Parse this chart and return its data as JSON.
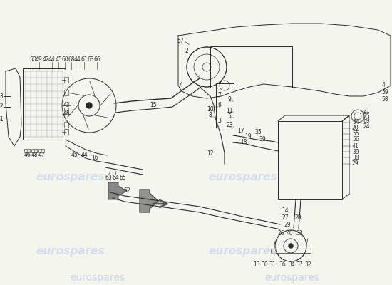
{
  "bg_color": "#f5f5f0",
  "watermark_text": "eurospares",
  "watermark_color": "#c8d4e8",
  "lc": "#2a2a2a",
  "label_fontsize": 5.5,
  "watermark_fontsize": 11
}
